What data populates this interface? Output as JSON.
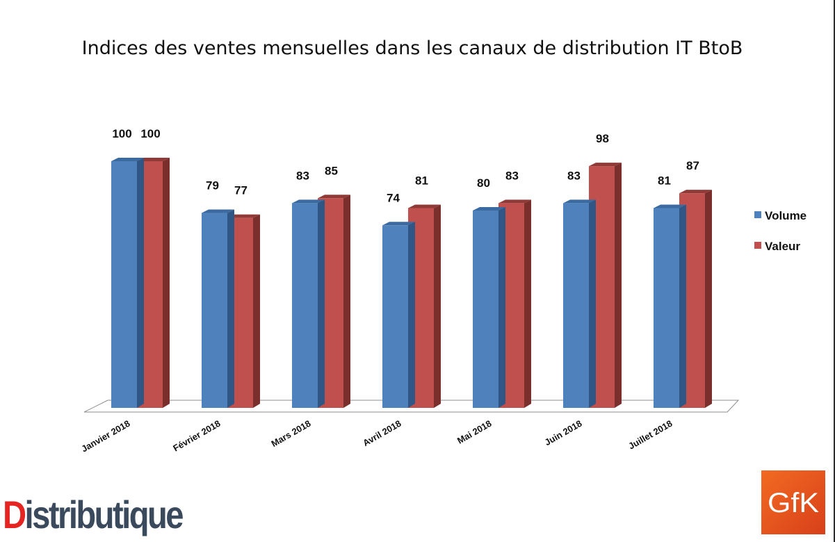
{
  "chart_data": {
    "type": "bar",
    "title": "Indices des ventes mensuelles dans les canaux de distribution IT BtoB",
    "categories": [
      "Janvier 2018",
      "Février 2018",
      "Mars 2018",
      "Avril 2018",
      "Mai 2018",
      "Juin 2018",
      "Juillet 2018"
    ],
    "series": [
      {
        "name": "Volume",
        "values": [
          100,
          79,
          83,
          74,
          80,
          83,
          81
        ],
        "color": "#4f81bd"
      },
      {
        "name": "Valeur",
        "values": [
          100,
          77,
          85,
          81,
          83,
          98,
          87
        ],
        "color": "#c0504d"
      }
    ],
    "ylim": [
      0,
      100
    ],
    "grid": false,
    "style": "3d-column",
    "legend_position": "right"
  },
  "logos": {
    "left": {
      "text": "Distributique",
      "accent_color": "#e52521",
      "text_color": "#3a4a5c"
    },
    "right": {
      "text": "GfK",
      "bg_color": "#e8501b"
    }
  }
}
